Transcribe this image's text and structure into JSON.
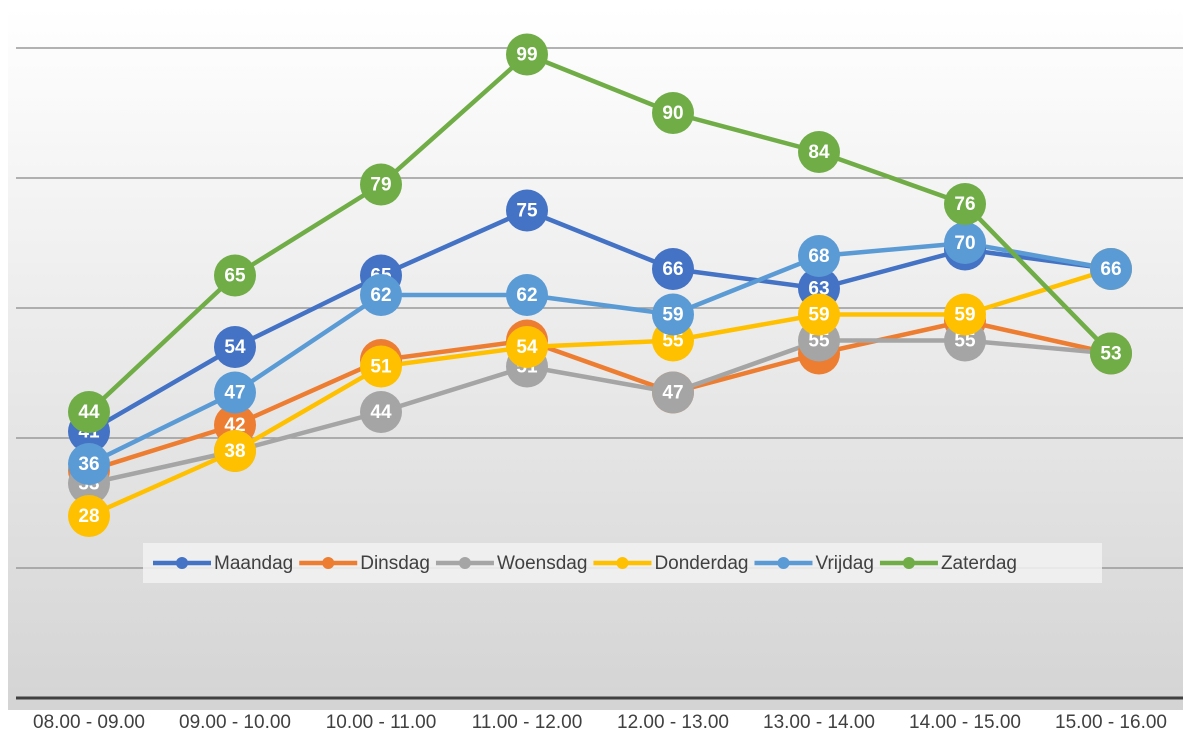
{
  "chart_data": {
    "type": "line",
    "categories": [
      "08.00 - 09.00",
      "09.00 - 10.00",
      "10.00 - 11.00",
      "11.00 - 12.00",
      "12.00 - 13.00",
      "13.00 - 14.00",
      "14.00 - 15.00",
      "15.00 - 16.00"
    ],
    "series": [
      {
        "name": "Maandag",
        "color": "#4472c4",
        "values": [
          41,
          54,
          65,
          75,
          66,
          63,
          69,
          66
        ]
      },
      {
        "name": "Dinsdag",
        "color": "#ed7d31",
        "values": [
          35,
          42,
          52,
          55,
          47,
          53,
          58,
          53
        ]
      },
      {
        "name": "Woensdag",
        "color": "#a5a5a5",
        "values": [
          33,
          38,
          44,
          51,
          47,
          55,
          55,
          53
        ]
      },
      {
        "name": "Donderdag",
        "color": "#ffc000",
        "values": [
          28,
          38,
          51,
          54,
          55,
          59,
          59,
          66
        ]
      },
      {
        "name": "Vrijdag",
        "color": "#5b9bd5",
        "values": [
          36,
          47,
          62,
          62,
          59,
          68,
          70,
          66
        ]
      },
      {
        "name": "Zaterdag",
        "color": "#70ad47",
        "values": [
          44,
          65,
          79,
          99,
          90,
          84,
          76,
          53
        ]
      }
    ],
    "ylim": [
      0,
      100
    ],
    "yticks": [
      0,
      20,
      40,
      60,
      80,
      100
    ],
    "grid": true,
    "legend": "bottom"
  }
}
